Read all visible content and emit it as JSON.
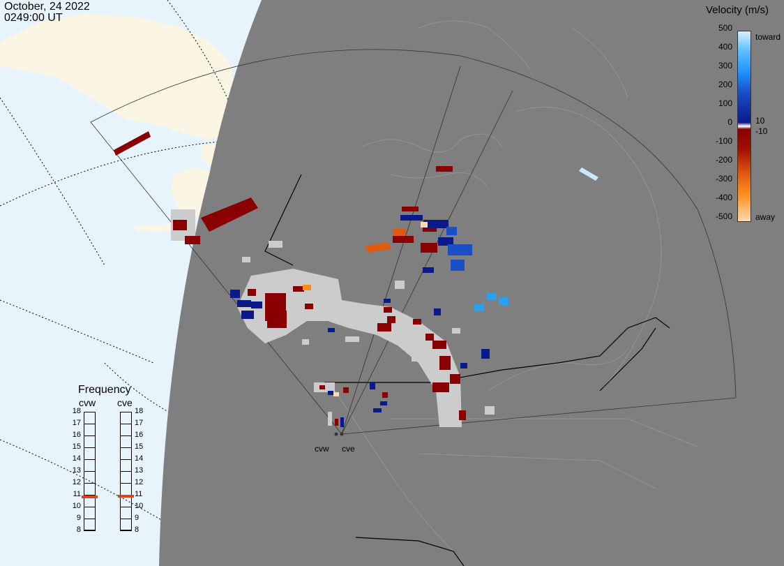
{
  "header": {
    "date": "October, 24 2022",
    "time": "0249:00 UT"
  },
  "legend": {
    "title": "Velocity (m/s)",
    "ticks": [
      "500",
      "400",
      "300",
      "200",
      "100",
      "0",
      "-100",
      "-200",
      "-300",
      "-400",
      "-500"
    ],
    "near_zero_pos": "10",
    "near_zero_neg": "-10",
    "toward_label": "toward",
    "away_label": "away",
    "colors": {
      "toward_strong": "#c8e8ff",
      "toward_mid": "#1e90ff",
      "toward_weak": "#0a1a8a",
      "away_weak": "#8a0000",
      "away_mid": "#e05a10",
      "away_strong": "#ffd9b0",
      "ground_scatter": "#cccccc"
    }
  },
  "frequency_panel": {
    "title": "Frequency",
    "radars": [
      {
        "name": "cvw",
        "value_mhz": 10.8
      },
      {
        "name": "cve",
        "value_mhz": 10.9
      }
    ],
    "ticks": [
      "18",
      "17",
      "16",
      "15",
      "14",
      "13",
      "12",
      "11",
      "10",
      "9",
      "8"
    ],
    "range": [
      8,
      18
    ]
  },
  "radar_sites": {
    "west": "cvw",
    "east": "cve"
  }
}
